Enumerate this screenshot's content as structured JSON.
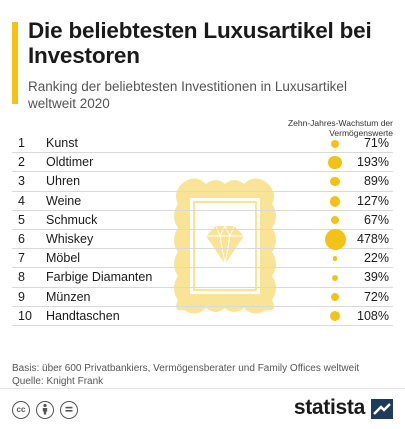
{
  "header": {
    "title": "Die beliebtesten Luxusartikel bei Investoren",
    "subtitle": "Ranking der beliebtesten Investitionen in Luxusartikel weltweit 2020"
  },
  "chart_data": {
    "type": "table",
    "value_header": "Zehn-Jahres-Wachstum der Vermögenswerte",
    "unit": "%",
    "rows": [
      {
        "rank": "1",
        "name": "Kunst",
        "value": 71,
        "label": "71%"
      },
      {
        "rank": "2",
        "name": "Oldtimer",
        "value": 193,
        "label": "193%"
      },
      {
        "rank": "3",
        "name": "Uhren",
        "value": 89,
        "label": "89%"
      },
      {
        "rank": "4",
        "name": "Weine",
        "value": 127,
        "label": "127%"
      },
      {
        "rank": "5",
        "name": "Schmuck",
        "value": 67,
        "label": "67%"
      },
      {
        "rank": "6",
        "name": "Whiskey",
        "value": 478,
        "label": "478%"
      },
      {
        "rank": "7",
        "name": "Möbel",
        "value": 22,
        "label": "22%"
      },
      {
        "rank": "8",
        "name": "Farbige Diamanten",
        "value": 39,
        "label": "39%"
      },
      {
        "rank": "9",
        "name": "Münzen",
        "value": 72,
        "label": "72%"
      },
      {
        "rank": "10",
        "name": "Handtaschen",
        "value": 108,
        "label": "108%"
      }
    ],
    "bubble_color": "#f2c314"
  },
  "footer": {
    "basis": "Basis: über 600 Privatbankiers, Vermögensberater und Family Offices weltweit",
    "source": "Quelle: Knight Frank",
    "brand": "statista",
    "license_icons": [
      "cc-icon",
      "person-icon",
      "equals-icon"
    ]
  },
  "colors": {
    "accent": "#f2c314",
    "text": "#1a1a1a",
    "muted": "#555555"
  }
}
